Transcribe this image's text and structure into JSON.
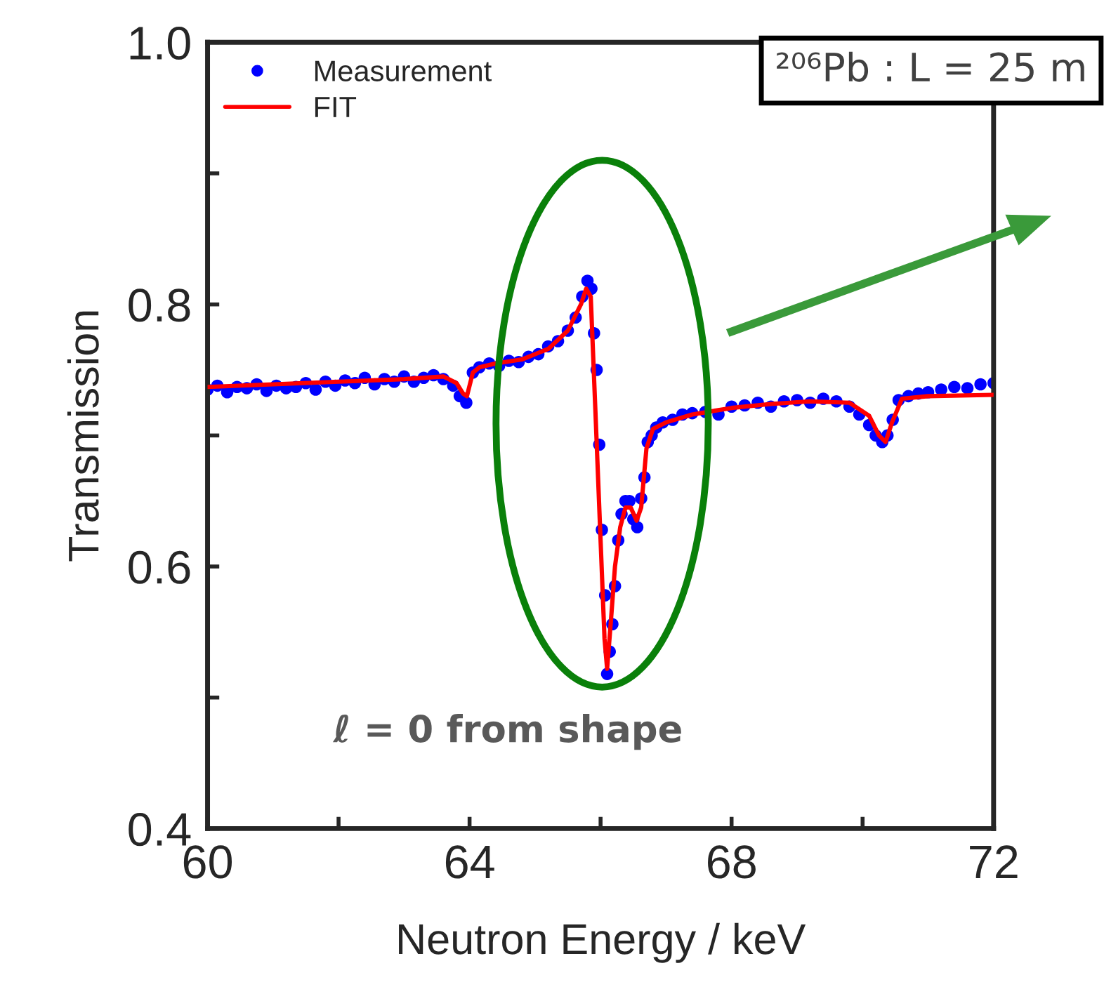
{
  "chart_data": {
    "type": "scatter",
    "xlabel": "Neutron Energy / keV",
    "ylabel": "Transmission",
    "xlim": [
      60,
      72
    ],
    "ylim": [
      0.4,
      1.0
    ],
    "xticks": [
      60,
      {
        "value": 62,
        "label": null
      },
      64,
      {
        "value": 66,
        "label": null
      },
      68,
      {
        "value": 70,
        "label": null
      },
      72
    ],
    "yticks": [
      0.4,
      {
        "value": 0.5,
        "label": null
      },
      0.6,
      {
        "value": 0.7,
        "label": null
      },
      0.8,
      {
        "value": 0.9,
        "label": null
      },
      {
        "value": 1.0,
        "label": "1.0"
      }
    ],
    "legend": "top left",
    "grid": false,
    "annotations": [
      "ℓ = 0 from shape",
      "²⁰⁶Pb : L = 25 m"
    ],
    "series": [
      {
        "name": "Measurement",
        "marker": "circle",
        "color": "#0000ff",
        "x": [
          60.0,
          60.15,
          60.3,
          60.45,
          60.6,
          60.75,
          60.9,
          61.05,
          61.2,
          61.35,
          61.5,
          61.65,
          61.8,
          61.95,
          62.1,
          62.25,
          62.4,
          62.55,
          62.7,
          62.85,
          63.0,
          63.15,
          63.3,
          63.45,
          63.6,
          63.75,
          63.85,
          63.95,
          64.05,
          64.15,
          64.3,
          64.45,
          64.6,
          64.75,
          64.9,
          65.05,
          65.2,
          65.35,
          65.5,
          65.62,
          65.72,
          65.8,
          65.86,
          65.9,
          65.94,
          65.98,
          66.02,
          66.07,
          66.1,
          66.14,
          66.18,
          66.22,
          66.27,
          66.32,
          66.38,
          66.44,
          66.5,
          66.56,
          66.62,
          66.67,
          66.72,
          66.78,
          66.85,
          66.95,
          67.1,
          67.25,
          67.4,
          67.6,
          67.8,
          68.0,
          68.2,
          68.4,
          68.6,
          68.8,
          69.0,
          69.2,
          69.4,
          69.6,
          69.8,
          69.95,
          70.1,
          70.2,
          70.3,
          70.38,
          70.46,
          70.55,
          70.7,
          70.85,
          71.0,
          71.2,
          71.4,
          71.6,
          71.8,
          72.0
        ],
        "values": [
          0.735,
          0.738,
          0.733,
          0.737,
          0.736,
          0.739,
          0.734,
          0.738,
          0.736,
          0.737,
          0.74,
          0.735,
          0.741,
          0.738,
          0.742,
          0.74,
          0.744,
          0.739,
          0.743,
          0.741,
          0.745,
          0.741,
          0.744,
          0.746,
          0.743,
          0.738,
          0.73,
          0.725,
          0.748,
          0.752,
          0.755,
          0.753,
          0.757,
          0.756,
          0.76,
          0.762,
          0.768,
          0.772,
          0.78,
          0.79,
          0.806,
          0.818,
          0.812,
          0.778,
          0.75,
          0.693,
          0.628,
          0.578,
          0.518,
          0.535,
          0.556,
          0.585,
          0.62,
          0.64,
          0.65,
          0.65,
          0.636,
          0.63,
          0.652,
          0.668,
          0.695,
          0.7,
          0.706,
          0.71,
          0.712,
          0.716,
          0.717,
          0.718,
          0.716,
          0.722,
          0.723,
          0.725,
          0.722,
          0.726,
          0.727,
          0.725,
          0.728,
          0.726,
          0.722,
          0.716,
          0.708,
          0.7,
          0.695,
          0.7,
          0.712,
          0.727,
          0.73,
          0.732,
          0.733,
          0.735,
          0.737,
          0.736,
          0.739,
          0.74
        ]
      },
      {
        "name": "FIT",
        "type": "line",
        "marker": "none",
        "line_style": "solid",
        "color": "#ff0000",
        "x": [
          60.0,
          61.0,
          62.0,
          63.0,
          63.6,
          63.8,
          63.9,
          63.96,
          64.05,
          64.15,
          64.4,
          64.8,
          65.2,
          65.5,
          65.7,
          65.78,
          65.85,
          65.92,
          66.0,
          66.06,
          66.1,
          66.16,
          66.22,
          66.3,
          66.38,
          66.46,
          66.55,
          66.62,
          66.7,
          66.8,
          67.0,
          67.4,
          68.0,
          68.6,
          69.2,
          69.8,
          70.1,
          70.25,
          70.35,
          70.45,
          70.6,
          71.0,
          72.0
        ],
        "values": [
          0.737,
          0.739,
          0.741,
          0.743,
          0.745,
          0.74,
          0.732,
          0.73,
          0.748,
          0.752,
          0.755,
          0.758,
          0.766,
          0.78,
          0.8,
          0.812,
          0.806,
          0.72,
          0.62,
          0.545,
          0.522,
          0.56,
          0.6,
          0.63,
          0.645,
          0.645,
          0.635,
          0.645,
          0.69,
          0.705,
          0.71,
          0.716,
          0.721,
          0.724,
          0.726,
          0.725,
          0.715,
          0.7,
          0.695,
          0.71,
          0.728,
          0.73,
          0.731
        ]
      }
    ]
  }
}
